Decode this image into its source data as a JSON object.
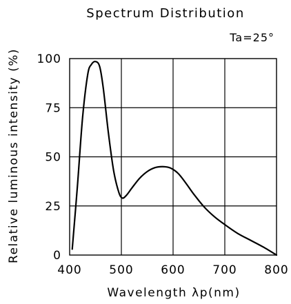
{
  "chart_data": {
    "type": "line",
    "title": "Spectrum Distribution",
    "annotation": "Ta=25°",
    "xlabel": "Wavelength λp(nm)",
    "ylabel": "Relative luminous intensity (%)",
    "xlim": [
      400,
      800
    ],
    "ylim": [
      0,
      100
    ],
    "x_ticks": [
      400,
      500,
      600,
      700,
      800
    ],
    "y_ticks": [
      0,
      25,
      50,
      75,
      100
    ],
    "x_tick_labels": [
      "400",
      "500",
      "600",
      "700",
      "800"
    ],
    "y_tick_labels": [
      "0",
      "25",
      "50",
      "75",
      "100"
    ],
    "grid": true,
    "line_color": "#000000",
    "series": [
      {
        "values": [
          {
            "x": 405,
            "y": 3
          },
          {
            "x": 415,
            "y": 35
          },
          {
            "x": 425,
            "y": 70
          },
          {
            "x": 435,
            "y": 92
          },
          {
            "x": 442,
            "y": 97
          },
          {
            "x": 450,
            "y": 98.5
          },
          {
            "x": 458,
            "y": 96
          },
          {
            "x": 465,
            "y": 85
          },
          {
            "x": 475,
            "y": 62
          },
          {
            "x": 485,
            "y": 43
          },
          {
            "x": 495,
            "y": 32
          },
          {
            "x": 502,
            "y": 29
          },
          {
            "x": 510,
            "y": 30.5
          },
          {
            "x": 520,
            "y": 34
          },
          {
            "x": 535,
            "y": 39
          },
          {
            "x": 550,
            "y": 42.5
          },
          {
            "x": 565,
            "y": 44.5
          },
          {
            "x": 580,
            "y": 45
          },
          {
            "x": 595,
            "y": 44.3
          },
          {
            "x": 610,
            "y": 41.5
          },
          {
            "x": 625,
            "y": 36.5
          },
          {
            "x": 640,
            "y": 31
          },
          {
            "x": 660,
            "y": 24.5
          },
          {
            "x": 680,
            "y": 19.5
          },
          {
            "x": 700,
            "y": 15.5
          },
          {
            "x": 725,
            "y": 11
          },
          {
            "x": 750,
            "y": 7.5
          },
          {
            "x": 775,
            "y": 4
          },
          {
            "x": 800,
            "y": 0
          }
        ]
      }
    ]
  }
}
